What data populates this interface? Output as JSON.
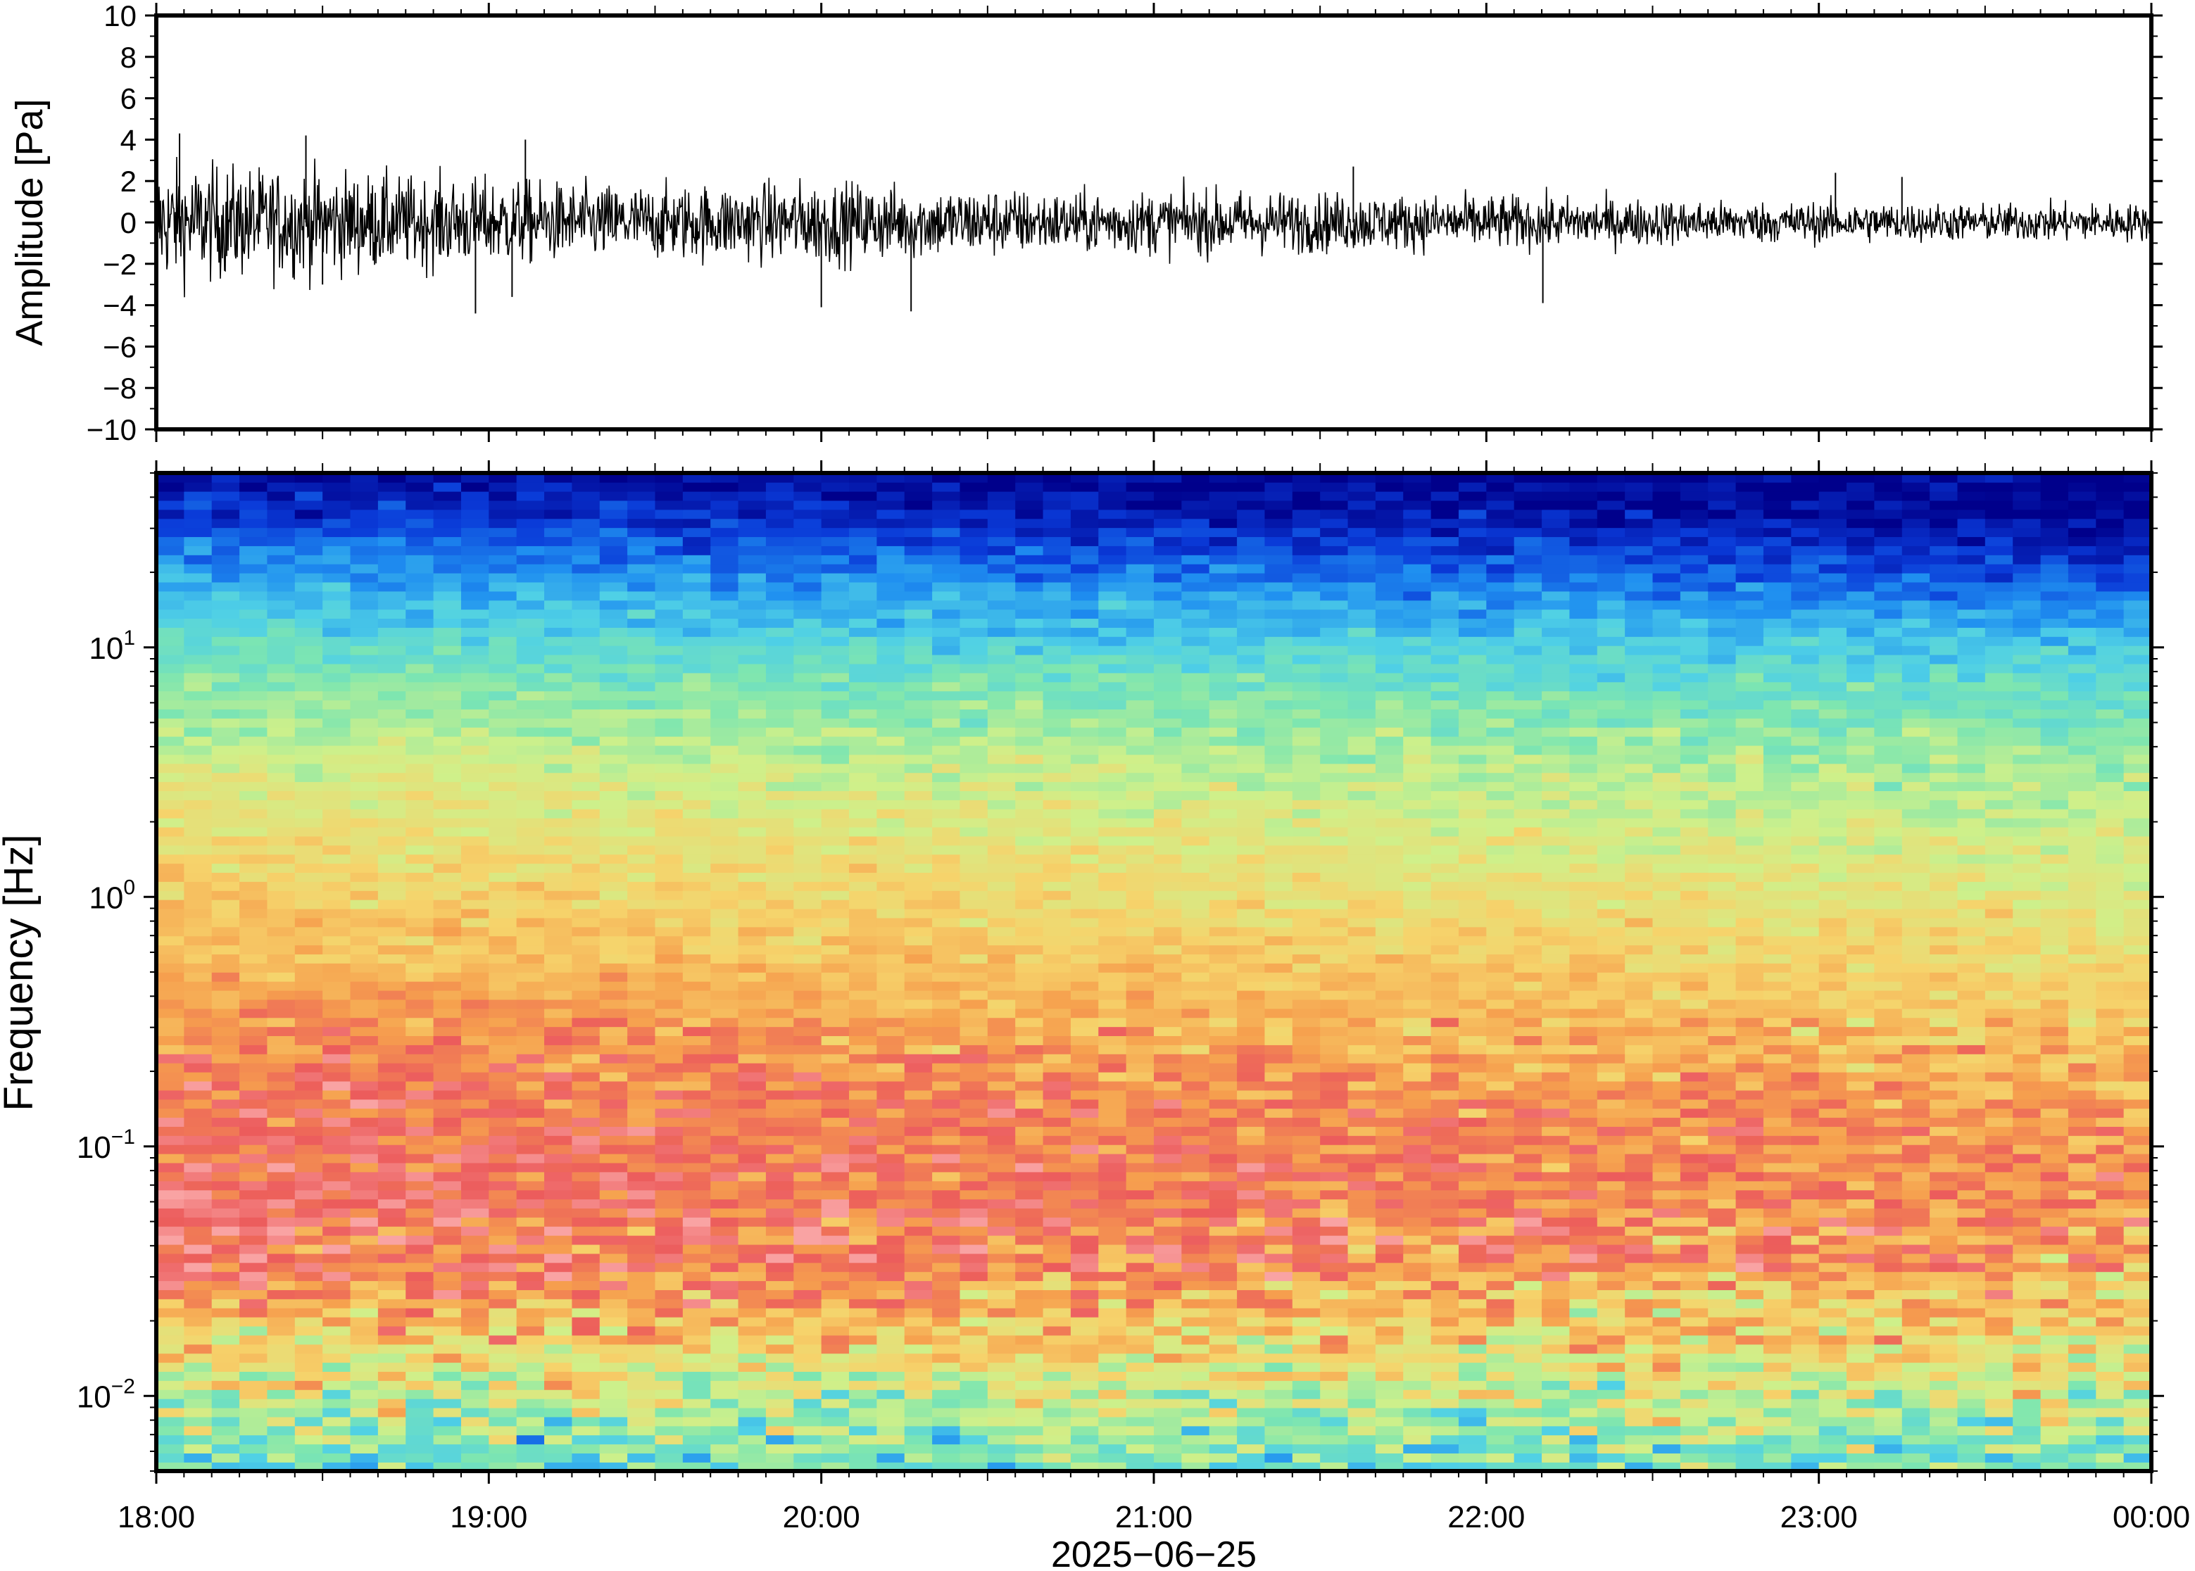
{
  "chart_data": [
    {
      "type": "line",
      "ylabel": "Amplitude [Pa]",
      "ylim": [
        -10,
        10
      ],
      "yticks": [
        -10,
        -8,
        -6,
        -4,
        -2,
        0,
        2,
        4,
        6,
        8,
        10
      ],
      "ytick_labels": [
        "−10",
        "−8",
        "−6",
        "−4",
        "−2",
        "0",
        "2",
        "4",
        "6",
        "8",
        "10"
      ],
      "xlim": [
        "18:00",
        "00:00"
      ],
      "grid": false,
      "series": [
        {
          "envelope_hours": [
            0,
            0.25,
            0.5,
            0.75,
            1.0,
            1.25,
            1.5,
            1.75,
            2.0,
            2.25,
            2.5,
            2.75,
            3.0,
            3.25,
            3.5,
            3.75,
            4.0,
            4.25,
            4.5,
            4.75,
            5.0,
            5.25,
            5.5,
            5.75,
            6.0
          ],
          "envelope_amplitude_pa": [
            2.6,
            2.4,
            2.3,
            2.0,
            1.9,
            1.7,
            1.6,
            1.7,
            1.8,
            1.6,
            1.5,
            1.3,
            1.4,
            1.4,
            1.3,
            1.2,
            1.2,
            1.1,
            1.0,
            0.9,
            0.9,
            0.85,
            0.8,
            0.85,
            0.8
          ],
          "peaks_hours_pa": [
            [
              0.07,
              4.3
            ],
            [
              0.45,
              4.2
            ],
            [
              0.5,
              -3.0
            ],
            [
              0.96,
              -4.4
            ],
            [
              1.11,
              4.0
            ],
            [
              1.07,
              -3.6
            ],
            [
              2.0,
              -4.1
            ],
            [
              2.27,
              -4.3
            ],
            [
              3.6,
              2.7
            ],
            [
              4.17,
              -3.9
            ],
            [
              5.05,
              2.4
            ],
            [
              5.25,
              2.2
            ]
          ]
        }
      ]
    },
    {
      "type": "heatmap",
      "ylabel": "Frequency [Hz]",
      "xlabel": "2025−06−25",
      "y_scale": "log",
      "ylim": [
        0.005,
        50
      ],
      "yticks": [
        0.01,
        0.1,
        1,
        10
      ],
      "ytick_labels": [
        {
          "base": "10",
          "exp": "−2"
        },
        {
          "base": "10",
          "exp": "−1"
        },
        {
          "base": "10",
          "exp": "0"
        },
        {
          "base": "10",
          "exp": "1"
        }
      ],
      "xlim": [
        "18:00",
        "00:00"
      ],
      "xticks": [
        "18:00",
        "19:00",
        "20:00",
        "21:00",
        "22:00",
        "23:00",
        "00:00"
      ],
      "colormap": [
        "#00008b",
        "#0a3ad8",
        "#1f8ff0",
        "#4fd0e6",
        "#7ee6b0",
        "#cff08a",
        "#f6d36b",
        "#f6a04e",
        "#ec5c5c",
        "#f9a3a3"
      ],
      "profile_log10f": [
        1.7,
        1.55,
        1.4,
        1.2,
        1.0,
        0.8,
        0.5,
        0.2,
        0.0,
        -0.2,
        -0.45,
        -0.65,
        -0.85,
        -1.05,
        -1.25,
        -1.45,
        -1.6,
        -1.8,
        -2.0,
        -2.15,
        -2.3
      ],
      "profile_start": [
        0.03,
        0.1,
        0.2,
        0.3,
        0.4,
        0.48,
        0.58,
        0.65,
        0.68,
        0.72,
        0.8,
        0.84,
        0.87,
        0.89,
        0.9,
        0.88,
        0.8,
        0.68,
        0.55,
        0.45,
        0.4
      ],
      "profile_end": [
        0.0,
        0.0,
        0.07,
        0.2,
        0.32,
        0.41,
        0.5,
        0.56,
        0.6,
        0.64,
        0.68,
        0.72,
        0.78,
        0.8,
        0.8,
        0.78,
        0.72,
        0.64,
        0.55,
        0.48,
        0.42
      ]
    }
  ]
}
